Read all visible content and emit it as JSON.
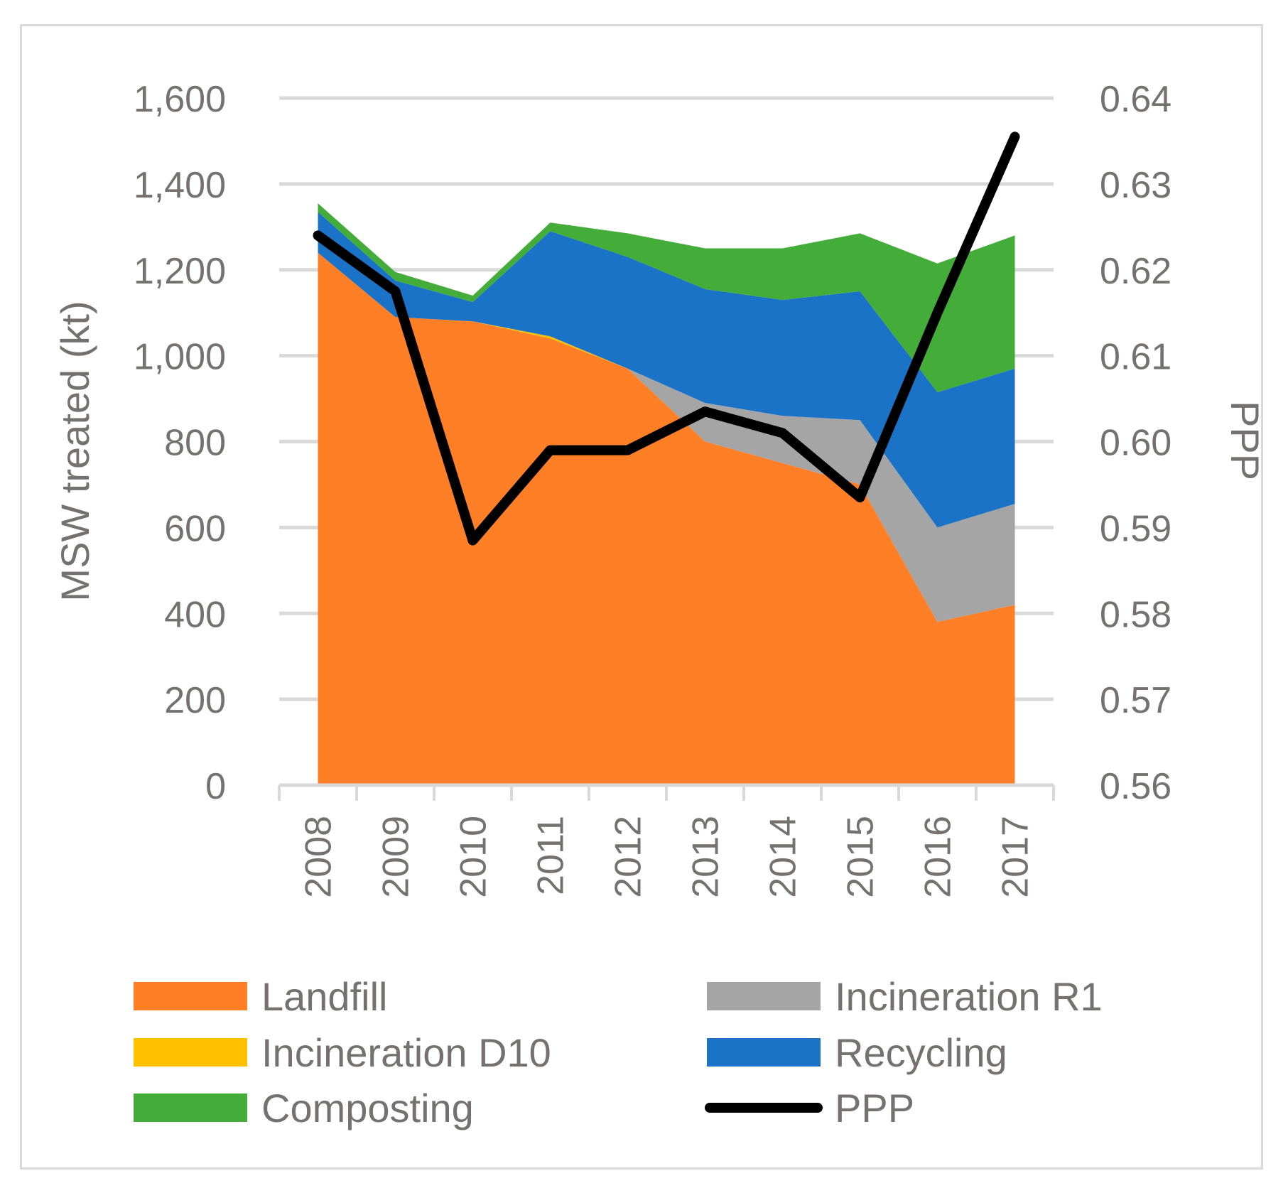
{
  "chart_data": {
    "type": "area",
    "title": "",
    "categories": [
      "2008",
      "2009",
      "2010",
      "2011",
      "2012",
      "2013",
      "2014",
      "2015",
      "2016",
      "2017"
    ],
    "series": [
      {
        "name": "Landfill",
        "color": "#ff7f27",
        "values": [
          1240,
          1090,
          1080,
          1040,
          970,
          800,
          750,
          700,
          380,
          420
        ]
      },
      {
        "name": "Incineration R1",
        "color": "#a5a5a5",
        "values": [
          0,
          0,
          0,
          0,
          0,
          90,
          110,
          150,
          220,
          235
        ]
      },
      {
        "name": "Incineration D10",
        "color": "#ffc000",
        "values": [
          0,
          0,
          0,
          5,
          0,
          0,
          0,
          0,
          0,
          0
        ]
      },
      {
        "name": "Recycling",
        "color": "#1b73c8",
        "values": [
          95,
          85,
          45,
          245,
          260,
          265,
          270,
          300,
          315,
          315
        ]
      },
      {
        "name": "Composting",
        "color": "#44ad3a",
        "values": [
          20,
          20,
          15,
          20,
          55,
          95,
          120,
          135,
          300,
          310
        ]
      }
    ],
    "line_series": {
      "name": "PPP",
      "color": "#000000",
      "axis": "secondary",
      "values": [
        0.624,
        0.6175,
        0.5885,
        0.599,
        0.599,
        0.6035,
        0.601,
        0.5935,
        0.615,
        0.6355
      ]
    },
    "ylabel": "MSW treated (kt)",
    "y2label": "PPP",
    "ylim": [
      0,
      1600
    ],
    "y2lim": [
      0.56,
      0.64
    ],
    "yticks": [
      "0",
      "200",
      "400",
      "600",
      "800",
      "1,000",
      "1,200",
      "1,400",
      "1,600"
    ],
    "y2ticks": [
      "0.56",
      "0.57",
      "0.58",
      "0.59",
      "0.60",
      "0.61",
      "0.62",
      "0.63",
      "0.64"
    ],
    "grid": true,
    "legend_position": "bottom",
    "legend": [
      "Landfill",
      "Incineration R1",
      "Incineration D10",
      "Recycling",
      "Composting",
      "PPP"
    ]
  }
}
